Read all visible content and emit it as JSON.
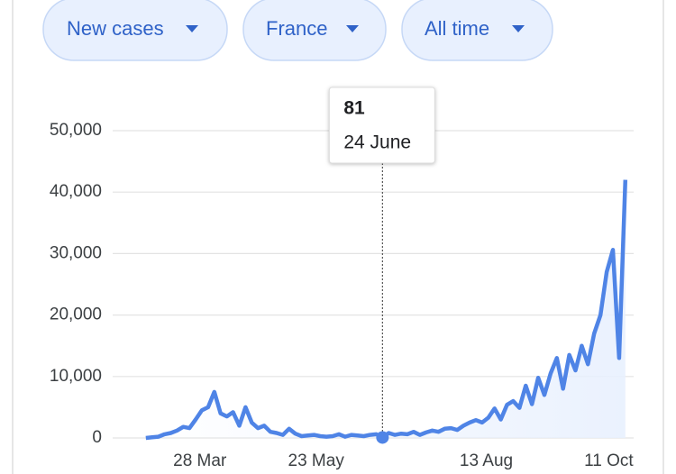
{
  "filters": [
    "New cases",
    "France",
    "All time"
  ],
  "chart_data": {
    "type": "line",
    "x": [
      62,
      65,
      68,
      71,
      74,
      77,
      80,
      83,
      86,
      89,
      92,
      95,
      98,
      101,
      104,
      107,
      110,
      113,
      116,
      119,
      122,
      125,
      128,
      131,
      134,
      137,
      140,
      143,
      146,
      149,
      152,
      155,
      158,
      161,
      164,
      167,
      170,
      173,
      176,
      179,
      182,
      185,
      188,
      191,
      194,
      197,
      200,
      203,
      206,
      209,
      212,
      215,
      218,
      221,
      224,
      227,
      230,
      233,
      236,
      239,
      242,
      245,
      248,
      251,
      254,
      257,
      260,
      263,
      266,
      269,
      272,
      275,
      278,
      281,
      284,
      287,
      290,
      293
    ],
    "values": [
      0,
      100,
      200,
      600,
      800,
      1200,
      1800,
      1600,
      3000,
      4500,
      5000,
      7500,
      4000,
      3500,
      4200,
      2000,
      5000,
      2500,
      1600,
      2000,
      1000,
      800,
      500,
      1500,
      700,
      300,
      400,
      500,
      300,
      200,
      300,
      600,
      200,
      500,
      400,
      300,
      500,
      600,
      81,
      800,
      500,
      700,
      600,
      1000,
      500,
      900,
      1200,
      1000,
      1500,
      1600,
      1300,
      2000,
      2500,
      2900,
      2500,
      3300,
      4800,
      3000,
      5400,
      6000,
      4900,
      8500,
      5500,
      9800,
      7000,
      10500,
      13000,
      8000,
      13500,
      11000,
      15000,
      12000,
      17000,
      20000,
      27000,
      30600,
      13000,
      42000
    ],
    "color": "#4f84e6",
    "xlim": [
      46,
      297
    ],
    "xticks": [
      {
        "value": 88,
        "label": "28 Mar"
      },
      {
        "value": 144,
        "label": "23 May"
      },
      {
        "value": 226,
        "label": "13 Aug"
      },
      {
        "value": 285,
        "label": "11 Oct"
      }
    ],
    "ylim": [
      0,
      50000
    ],
    "yticks": [
      0,
      {
        "value": 10000,
        "label": "10,000"
      },
      {
        "value": 20000,
        "label": "20,000"
      },
      {
        "value": 30000,
        "label": "30,000"
      },
      {
        "value": 40000,
        "label": "40,000"
      },
      {
        "value": 50000,
        "label": "50,000"
      }
    ],
    "grid": true,
    "tooltip_index": 38,
    "tooltip_date": "24 June"
  }
}
